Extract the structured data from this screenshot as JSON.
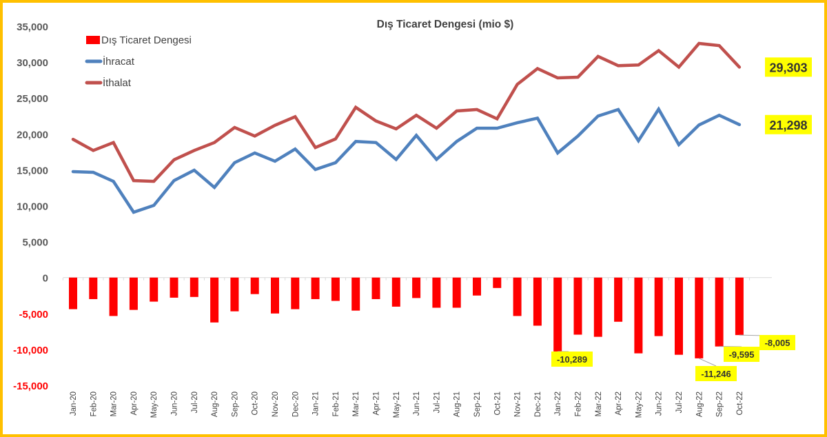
{
  "chart_data": {
    "type": "bar+line",
    "title": "Dış Ticaret Dengesi (mio $)",
    "xlabel": "",
    "ylabel": "",
    "ylim": [
      -15000,
      35000
    ],
    "yticks": [
      35000,
      30000,
      25000,
      20000,
      15000,
      10000,
      5000,
      0,
      -5000,
      -10000,
      -15000
    ],
    "ytick_labels": [
      "35,000",
      "30,000",
      "25,000",
      "20,000",
      "15,000",
      "10,000",
      "5,000",
      "0",
      "-5,000",
      "-10,000",
      "-15,000"
    ],
    "grid": false,
    "legend_position": "top-left",
    "categories": [
      "Jan-20",
      "Feb-20",
      "Mar-20",
      "Apr-20",
      "May-20",
      "Jun-20",
      "Jul-20",
      "Aug-20",
      "Sep-20",
      "Oct-20",
      "Nov-20",
      "Dec-20",
      "Jan-21",
      "Feb-21",
      "Mar-21",
      "Apr-21",
      "May-21",
      "Jun-21",
      "Jul-21",
      "Aug-21",
      "Sep-21",
      "Oct-21",
      "Nov-21",
      "Dec-21",
      "Jan-22",
      "Feb-22",
      "Mar-22",
      "Apr-22",
      "May-22",
      "Jun-22",
      "Jul-22",
      "Aug-22",
      "Sep-22",
      "Oct-22"
    ],
    "series": [
      {
        "name": "Dış Ticaret Dengesi",
        "kind": "bar",
        "color": "#FF0000",
        "values": [
          -4400,
          -3000,
          -5350,
          -4500,
          -3350,
          -2800,
          -2700,
          -6250,
          -4700,
          -2300,
          -5000,
          -4400,
          -3000,
          -3250,
          -4600,
          -3000,
          -4050,
          -2850,
          -4200,
          -4200,
          -2500,
          -1450,
          -5350,
          -6700,
          -10289,
          -7950,
          -8250,
          -6150,
          -10550,
          -8150,
          -10750,
          -11246,
          -9595,
          -8005
        ],
        "labels": [
          {
            "category": "Jan-22",
            "text": "-10,289"
          },
          {
            "category": "Aug-22",
            "text": "-11,246"
          },
          {
            "category": "Sep-22",
            "text": "-9,595"
          },
          {
            "category": "Oct-22",
            "text": "-8,005"
          }
        ]
      },
      {
        "name": "İhracat",
        "kind": "line",
        "color": "#4F81BD",
        "values": [
          14750,
          14650,
          13400,
          9100,
          10050,
          13500,
          14950,
          12550,
          16000,
          17350,
          16200,
          17900,
          15050,
          16000,
          18950,
          18800,
          16450,
          19800,
          16450,
          18950,
          20800,
          20800,
          21550,
          22200,
          17350,
          19700,
          22500,
          23400,
          19050,
          23450,
          18500,
          21250,
          22600,
          21298
        ],
        "end_label": "21,298"
      },
      {
        "name": "İthalat",
        "kind": "line",
        "color": "#C0504D",
        "values": [
          19250,
          17700,
          18800,
          13500,
          13400,
          16400,
          17700,
          18800,
          20900,
          19700,
          21200,
          22400,
          18100,
          19300,
          23700,
          21800,
          20700,
          22600,
          20800,
          23200,
          23400,
          22100,
          26900,
          29100,
          27800,
          27900,
          30800,
          29500,
          29600,
          31600,
          29300,
          32600,
          32300,
          29303
        ],
        "end_label": "29,303"
      }
    ],
    "label_highlight_color": "#FFFF00",
    "frame_color": "#FFC000"
  }
}
